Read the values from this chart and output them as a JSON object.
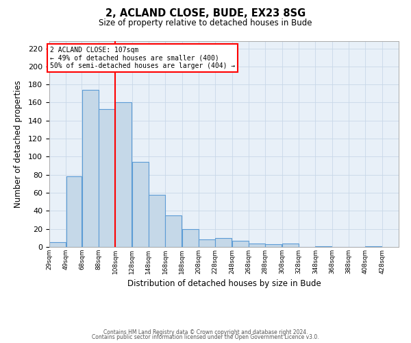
{
  "title": "2, ACLAND CLOSE, BUDE, EX23 8SG",
  "subtitle": "Size of property relative to detached houses in Bude",
  "xlabel": "Distribution of detached houses by size in Bude",
  "ylabel": "Number of detached properties",
  "bar_left_edges": [
    29,
    49,
    68,
    88,
    108,
    128,
    148,
    168,
    188,
    208,
    228,
    248,
    268,
    288,
    308,
    328,
    348,
    368,
    388,
    408
  ],
  "bar_widths": [
    20,
    19,
    20,
    20,
    20,
    20,
    20,
    20,
    20,
    20,
    20,
    20,
    20,
    20,
    20,
    20,
    20,
    20,
    20,
    20
  ],
  "bar_heights": [
    5,
    78,
    174,
    153,
    160,
    94,
    58,
    35,
    20,
    8,
    10,
    7,
    4,
    3,
    4,
    0,
    1,
    0,
    0,
    1
  ],
  "bar_color": "#c5d8e8",
  "bar_edge_color": "#5b9bd5",
  "x_tick_labels": [
    "29sqm",
    "49sqm",
    "68sqm",
    "88sqm",
    "108sqm",
    "128sqm",
    "148sqm",
    "168sqm",
    "188sqm",
    "208sqm",
    "228sqm",
    "248sqm",
    "268sqm",
    "288sqm",
    "308sqm",
    "328sqm",
    "348sqm",
    "368sqm",
    "388sqm",
    "408sqm",
    "428sqm"
  ],
  "ylim": [
    0,
    228
  ],
  "yticks": [
    0,
    20,
    40,
    60,
    80,
    100,
    120,
    140,
    160,
    180,
    200,
    220
  ],
  "xlim": [
    29,
    448
  ],
  "red_line_x": 108,
  "annotation_title": "2 ACLAND CLOSE: 107sqm",
  "annotation_line1": "← 49% of detached houses are smaller (400)",
  "annotation_line2": "50% of semi-detached houses are larger (404) →",
  "footer1": "Contains HM Land Registry data © Crown copyright and database right 2024.",
  "footer2": "Contains public sector information licensed under the Open Government Licence v3.0.",
  "grid_color": "#c8d8e8",
  "background_color": "#e8f0f8"
}
